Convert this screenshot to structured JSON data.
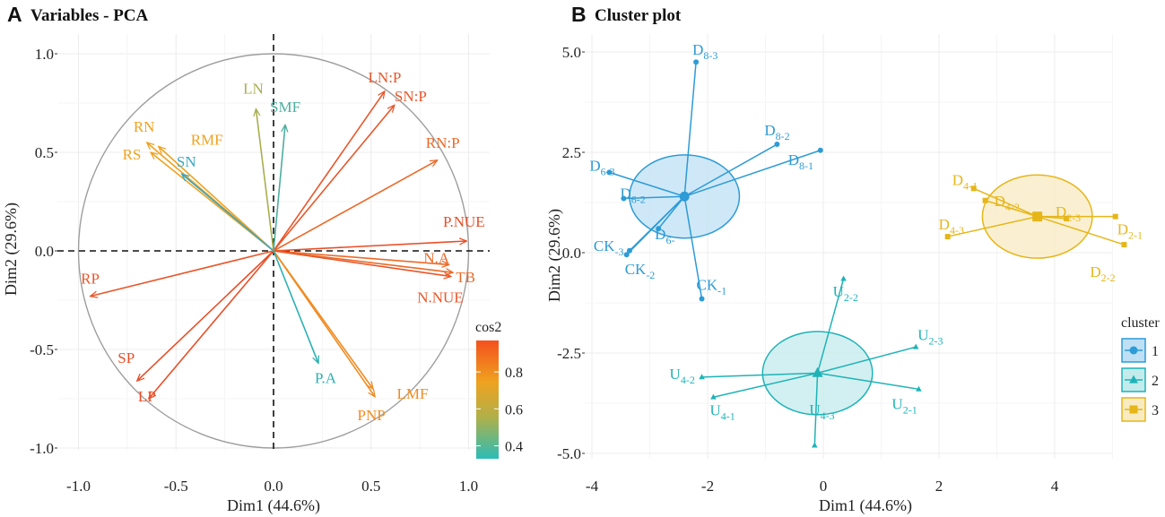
{
  "chart_data": [
    {
      "type": "scatter",
      "panel": "A",
      "title": "Variables - PCA",
      "xlabel": "Dim1 (44.6%)",
      "ylabel": "Dim2 (29.6%)",
      "xlim": [
        -1.0,
        1.0
      ],
      "ylim": [
        -1.0,
        1.0
      ],
      "xticks": [
        "-1.0",
        "-0.5",
        "0.0",
        "0.5",
        "1.0"
      ],
      "yticks": [
        "1.0",
        "0.5",
        "0.0",
        "-0.5",
        "-1.0"
      ],
      "circle_radius": 1.0,
      "legend": {
        "title": "cos2",
        "ticks": [
          "0.8",
          "0.6",
          "0.4"
        ],
        "range": [
          0.33,
          0.97
        ],
        "colors": [
          "#F4511E",
          "#EFA21F",
          "#B0B04A",
          "#2BBCB7"
        ]
      },
      "variables": [
        {
          "name": "LN:P",
          "x": 0.57,
          "y": 0.81,
          "color": "#E8572A"
        },
        {
          "name": "SN:P",
          "x": 0.62,
          "y": 0.74,
          "color": "#E8572A"
        },
        {
          "name": "RN:P",
          "x": 0.84,
          "y": 0.46,
          "color": "#EC6A28"
        },
        {
          "name": "P.NUE",
          "x": 0.99,
          "y": 0.05,
          "color": "#E94E27"
        },
        {
          "name": "N.A",
          "x": 0.9,
          "y": -0.07,
          "color": "#EC6A28"
        },
        {
          "name": "TB",
          "x": 0.92,
          "y": -0.11,
          "color": "#EC6A28"
        },
        {
          "name": "N.NUE",
          "x": 0.91,
          "y": -0.13,
          "color": "#E8572A"
        },
        {
          "name": "LMF",
          "x": 0.51,
          "y": -0.7,
          "color": "#EF8C22"
        },
        {
          "name": "PNP",
          "x": 0.52,
          "y": -0.74,
          "color": "#EF8C22"
        },
        {
          "name": "P.A",
          "x": 0.23,
          "y": -0.57,
          "color": "#2BB1B2"
        },
        {
          "name": "LP",
          "x": -0.64,
          "y": -0.75,
          "color": "#E94E27"
        },
        {
          "name": "SP",
          "x": -0.7,
          "y": -0.66,
          "color": "#E94E27"
        },
        {
          "name": "RP",
          "x": -0.94,
          "y": -0.23,
          "color": "#E8572A"
        },
        {
          "name": "RS",
          "x": -0.63,
          "y": 0.5,
          "color": "#EFA21F"
        },
        {
          "name": "RMF",
          "x": -0.59,
          "y": 0.53,
          "color": "#EFA21F"
        },
        {
          "name": "RN",
          "x": -0.65,
          "y": 0.55,
          "color": "#EFA21F"
        },
        {
          "name": "SN",
          "x": -0.47,
          "y": 0.39,
          "color": "#3AA6C2"
        },
        {
          "name": "LN",
          "x": -0.09,
          "y": 0.72,
          "color": "#A8AE4E"
        },
        {
          "name": "SMF",
          "x": 0.06,
          "y": 0.64,
          "color": "#4DAE9E"
        }
      ]
    },
    {
      "type": "scatter",
      "panel": "B",
      "title": "Cluster plot",
      "xlabel": "Dim1 (44.6%)",
      "ylabel": "Dim2 (29.6%)",
      "xlim": [
        -4.15,
        5.5
      ],
      "ylim": [
        -5.3,
        5.3
      ],
      "xticks": [
        "-4",
        "-2",
        "0",
        "2",
        "4"
      ],
      "yticks": [
        "5.0",
        "2.5",
        "0.0",
        "-2.5",
        "-5.0"
      ],
      "legend": {
        "title": "cluster",
        "entries": [
          "1",
          "2",
          "3"
        ]
      },
      "clusters": [
        {
          "id": "1",
          "color": "#2D9BD6",
          "fill": "#BFE0F4",
          "marker": "circle",
          "center": [
            -2.4,
            1.4
          ],
          "ellipse_radii": [
            0.95,
            0.72
          ],
          "points": [
            {
              "main": "D",
              "sub": "8-3",
              "x": -2.2,
              "y": 4.75
            },
            {
              "main": "D",
              "sub": "8-2",
              "x": -0.8,
              "y": 2.7
            },
            {
              "main": "D",
              "sub": "8-1",
              "x": -0.05,
              "y": 2.55
            },
            {
              "main": "D",
              "sub": "6-3",
              "x": -3.7,
              "y": 2.0
            },
            {
              "main": "D",
              "sub": "6-2",
              "x": -3.45,
              "y": 1.35
            },
            {
              "main": "D",
              "sub": "6-",
              "x": -2.85,
              "y": 0.6
            },
            {
              "main": "CK",
              "sub": "-3",
              "x": -3.35,
              "y": 0.05
            },
            {
              "main": "CK",
              "sub": "-2",
              "x": -3.4,
              "y": -0.05
            },
            {
              "main": "CK",
              "sub": "-1",
              "x": -2.1,
              "y": -1.15
            }
          ]
        },
        {
          "id": "2",
          "color": "#1FB3B7",
          "fill": "#C3EBEC",
          "marker": "triangle",
          "center": [
            -0.1,
            -3.0
          ],
          "ellipse_radii": [
            0.95,
            0.72
          ],
          "points": [
            {
              "main": "U",
              "sub": "2-2",
              "x": 0.35,
              "y": -0.65
            },
            {
              "main": "U",
              "sub": "2-3",
              "x": 1.6,
              "y": -2.35
            },
            {
              "main": "U",
              "sub": "2-1",
              "x": 1.65,
              "y": -3.4
            },
            {
              "main": "U",
              "sub": "4-2",
              "x": -2.1,
              "y": -3.1
            },
            {
              "main": "U",
              "sub": "4-1",
              "x": -1.9,
              "y": -3.6
            },
            {
              "main": "U",
              "sub": "4-3",
              "x": -0.15,
              "y": -4.8
            }
          ]
        },
        {
          "id": "3",
          "color": "#E6B619",
          "fill": "#F8EBC2",
          "marker": "square",
          "center": [
            3.7,
            0.9
          ],
          "ellipse_radii": [
            0.95,
            0.72
          ],
          "points": [
            {
              "main": "D",
              "sub": "4-1",
              "x": 2.6,
              "y": 1.6
            },
            {
              "main": "D",
              "sub": "4-2",
              "x": 2.8,
              "y": 1.3
            },
            {
              "main": "D",
              "sub": "4-3",
              "x": 2.15,
              "y": 0.4
            },
            {
              "main": "D",
              "sub": "2-3",
              "x": 4.2,
              "y": 0.85
            },
            {
              "main": "D",
              "sub": "2-1",
              "x": 5.05,
              "y": 0.9
            },
            {
              "main": "D",
              "sub": "2-2",
              "x": 5.2,
              "y": 0.2
            }
          ]
        }
      ]
    }
  ]
}
